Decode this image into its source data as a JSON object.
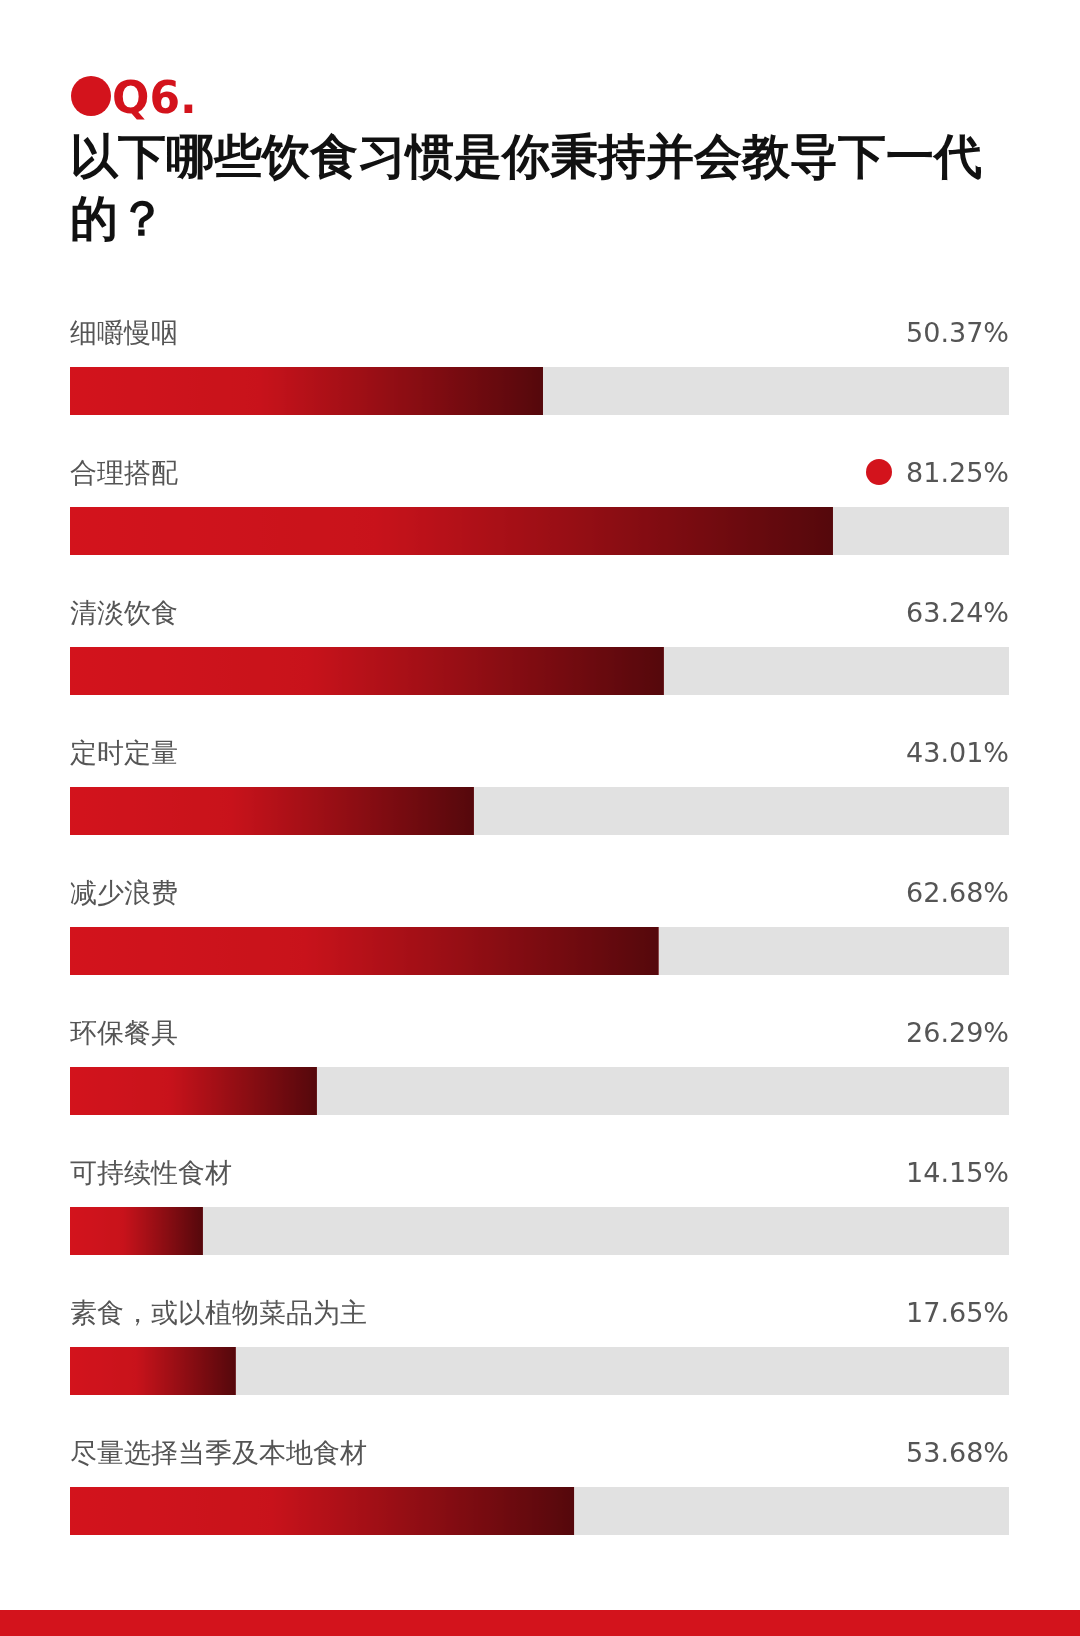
{
  "chart_data": {
    "type": "bar",
    "orientation": "horizontal",
    "title": "Q6.",
    "subtitle": "以下哪些饮食习惯是你秉持并会教导下一代的？",
    "categories": [
      "细嚼慢咽",
      "合理搭配",
      "清淡饮食",
      "定时定量",
      "减少浪费",
      "环保餐具",
      "可持续性食材",
      "素食，或以植物菜品为主",
      "尽量选择当季及本地食材"
    ],
    "values": [
      50.37,
      81.25,
      63.24,
      43.01,
      62.68,
      26.29,
      14.15,
      17.65,
      53.68
    ],
    "value_labels": [
      "50.37%",
      "81.25%",
      "63.24%",
      "43.01%",
      "62.68%",
      "26.29%",
      "14.15%",
      "17.65%",
      "53.68%"
    ],
    "color": "#d3131c",
    "xlim": [
      0,
      100
    ]
  }
}
